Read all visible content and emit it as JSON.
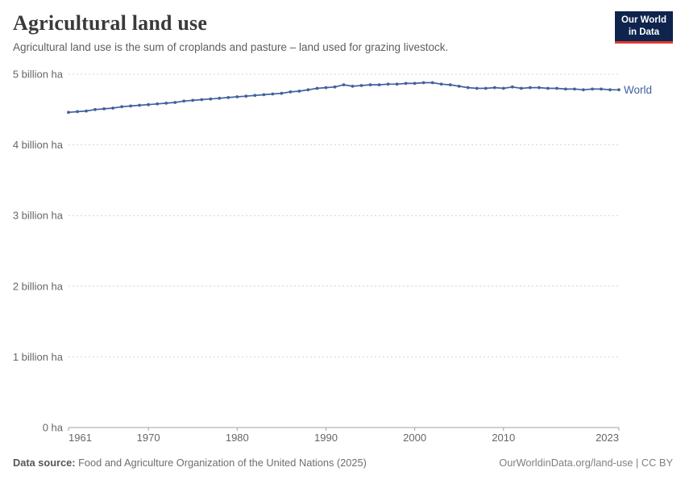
{
  "header": {
    "title": "Agricultural land use",
    "subtitle": "Agricultural land use is the sum of croplands and pasture – land used for grazing livestock.",
    "logo": {
      "line1": "Our World",
      "line2": "in Data"
    }
  },
  "chart_data": {
    "type": "line",
    "title": "Agricultural land use",
    "xlabel": "",
    "ylabel": "",
    "unit": "billion ha",
    "ylim": [
      0,
      5
    ],
    "grid": "horizontal-dashed",
    "legend_position": "end-of-line",
    "yticks": [
      {
        "value": 0,
        "label": "0 ha"
      },
      {
        "value": 1,
        "label": "1 billion ha"
      },
      {
        "value": 2,
        "label": "2 billion ha"
      },
      {
        "value": 3,
        "label": "3 billion ha"
      },
      {
        "value": 4,
        "label": "4 billion ha"
      },
      {
        "value": 5,
        "label": "5 billion ha"
      }
    ],
    "xticks": [
      1961,
      1970,
      1980,
      1990,
      2000,
      2010,
      2023
    ],
    "x": [
      1961,
      1962,
      1963,
      1964,
      1965,
      1966,
      1967,
      1968,
      1969,
      1970,
      1971,
      1972,
      1973,
      1974,
      1975,
      1976,
      1977,
      1978,
      1979,
      1980,
      1981,
      1982,
      1983,
      1984,
      1985,
      1986,
      1987,
      1988,
      1989,
      1990,
      1991,
      1992,
      1993,
      1994,
      1995,
      1996,
      1997,
      1998,
      1999,
      2000,
      2001,
      2002,
      2003,
      2004,
      2005,
      2006,
      2007,
      2008,
      2009,
      2010,
      2011,
      2012,
      2013,
      2014,
      2015,
      2016,
      2017,
      2018,
      2019,
      2020,
      2021,
      2022,
      2023
    ],
    "series": [
      {
        "name": "World",
        "color": "#41619e",
        "values": [
          4.46,
          4.47,
          4.48,
          4.5,
          4.51,
          4.52,
          4.54,
          4.55,
          4.56,
          4.57,
          4.58,
          4.59,
          4.6,
          4.62,
          4.63,
          4.64,
          4.65,
          4.66,
          4.67,
          4.68,
          4.69,
          4.7,
          4.71,
          4.72,
          4.73,
          4.75,
          4.76,
          4.78,
          4.8,
          4.81,
          4.82,
          4.85,
          4.83,
          4.84,
          4.85,
          4.85,
          4.86,
          4.86,
          4.87,
          4.87,
          4.88,
          4.88,
          4.86,
          4.85,
          4.83,
          4.81,
          4.8,
          4.8,
          4.81,
          4.8,
          4.82,
          4.8,
          4.81,
          4.81,
          4.8,
          4.8,
          4.79,
          4.79,
          4.78,
          4.79,
          4.79,
          4.78,
          4.78
        ]
      }
    ]
  },
  "footer": {
    "source_label": "Data source:",
    "source_text": "Food and Agriculture Organization of the United Nations (2025)",
    "note": "OurWorldinData.org/land-use | CC BY"
  },
  "colors": {
    "line": "#41619e",
    "grid": "#d4d4d4",
    "axis": "#a1a1a1",
    "axis_text": "#666666",
    "logo_bg": "#0f244d",
    "logo_accent": "#dc3a32"
  }
}
